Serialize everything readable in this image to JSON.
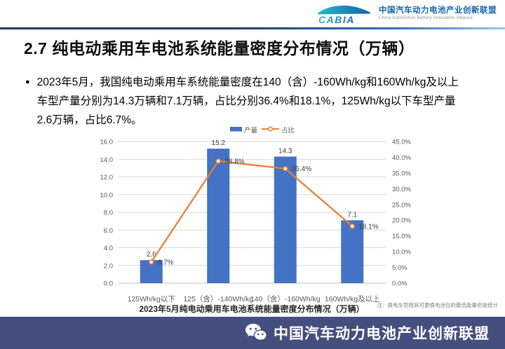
{
  "header": {
    "logo_text": "CABIA",
    "org_name_zh": "中国汽车动力电池产业创新联盟",
    "org_name_en": "China Automotive Battery Innovation Alliance"
  },
  "title": "2.7 纯电动乘用车电池系统能量密度分布情况（万辆）",
  "bullet": {
    "marker": "●",
    "lines": [
      "2023年5月，我国纯电动乘用车系统能量密度在140（含）-160Wh/kg和160Wh/kg及以上",
      "车型产量分别为14.3万辆和7.1万辆，占比分别36.4%和18.1%，125Wh/kg以下车型产量",
      "2.6万辆，占比6.7%。"
    ]
  },
  "chart_data": {
    "type": "bar",
    "subtype": "bar-line-combo",
    "categories": [
      "125Wh/kg以下",
      "125（含）-140Wh/kg",
      "140（含）-160Wh/kg",
      "160Wh/kg及以上"
    ],
    "series": [
      {
        "name": "产量",
        "type": "bar",
        "axis": "left",
        "values": [
          2.6,
          15.2,
          14.3,
          7.1
        ],
        "color": "#4472C4"
      },
      {
        "name": "占比",
        "type": "line",
        "axis": "right",
        "values_pct": [
          6.7,
          38.8,
          36.4,
          18.1
        ],
        "labels": [
          "6.7%",
          "38.8%",
          "36.4%",
          "18.1%"
        ],
        "color": "#ED7D31"
      }
    ],
    "left_axis": {
      "min": 0,
      "max": 16,
      "step": 2,
      "format": "fixed1"
    },
    "right_axis": {
      "min": 0,
      "max": 45,
      "step": 5,
      "format": "percent1"
    },
    "title": "2023年5月纯电动乘用车电池系统能量密度分布情况（万辆）",
    "note": "注：换电车型按其可更换电池包的最低能量密度统计",
    "grid": "horizontal",
    "legend_position": "top-center"
  },
  "footer": {
    "org_name": "中国汽车动力电池产业创新联盟"
  },
  "colors": {
    "bar": "#4472C4",
    "line": "#ED7D31",
    "grid": "#D9D9D9",
    "axis_line": "#BFBFBF",
    "tick_text": "#595959",
    "data_label": "#404040",
    "chart_title": "#262626",
    "note_text": "#808080",
    "footer_bg": "#454F7E",
    "divider_dark": "#1e3a67",
    "divider_light": "#9cc6ee",
    "org_blue": "#1464ac"
  }
}
